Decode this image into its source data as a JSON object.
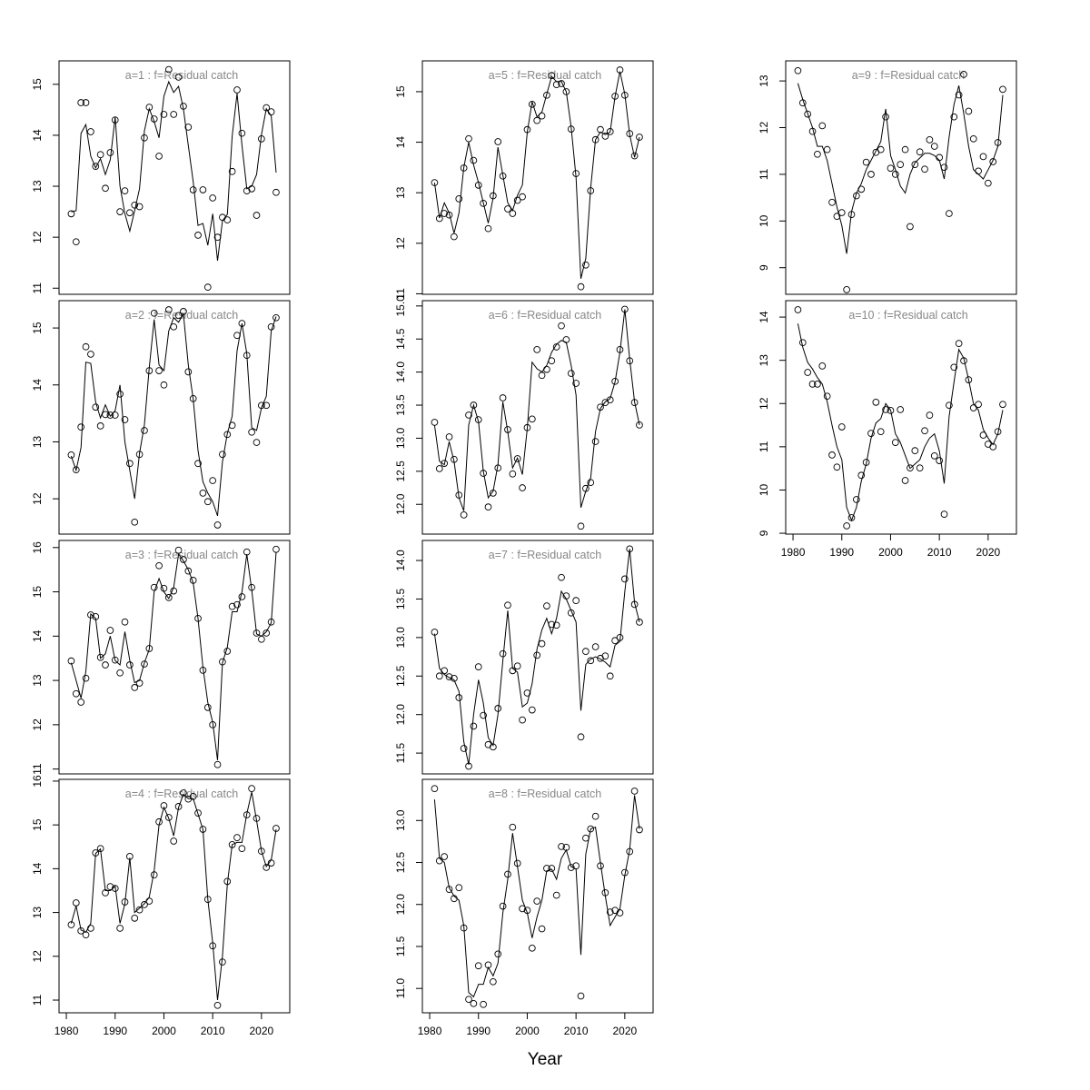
{
  "x_label": "Year",
  "x": [
    1981,
    1982,
    1983,
    1984,
    1985,
    1986,
    1987,
    1988,
    1989,
    1990,
    1991,
    1992,
    1993,
    1994,
    1995,
    1996,
    1997,
    1998,
    1999,
    2000,
    2001,
    2002,
    2003,
    2004,
    2005,
    2006,
    2007,
    2008,
    2009,
    2010,
    2011,
    2012,
    2013,
    2014,
    2015,
    2016,
    2017,
    2018,
    2019,
    2020,
    2021,
    2022,
    2023
  ],
  "xlim": [
    1978.5,
    2025.8
  ],
  "xticks": [
    1980,
    1990,
    2000,
    2010,
    2020
  ],
  "chart_data": [
    {
      "type": "line",
      "title": "a=1  :  f=Residual catch",
      "ylim": [
        10.88,
        15.46
      ],
      "yticks": [
        11,
        12,
        13,
        14,
        15
      ],
      "x_axis": false,
      "points": [
        12.46,
        11.91,
        14.64,
        14.64,
        14.07,
        13.39,
        13.62,
        12.96,
        13.66,
        14.3,
        12.5,
        12.91,
        12.48,
        12.63,
        12.6,
        13.95,
        14.55,
        14.32,
        13.59,
        14.41,
        15.29,
        14.41,
        15.14,
        14.57,
        14.16,
        12.93,
        12.04,
        12.93,
        11.02,
        12.77,
        12.0,
        12.39,
        12.34,
        13.29,
        14.89,
        14.04,
        12.91,
        12.95,
        12.43,
        13.93,
        14.54,
        14.46,
        12.88
      ],
      "line": [
        12.5,
        12.52,
        14.04,
        14.21,
        13.59,
        13.36,
        13.54,
        13.23,
        13.52,
        14.36,
        13.0,
        12.46,
        12.12,
        12.52,
        12.95,
        14.09,
        14.52,
        14.27,
        13.95,
        14.77,
        15.05,
        14.84,
        14.96,
        14.52,
        13.8,
        13.09,
        12.23,
        12.27,
        11.84,
        12.46,
        11.54,
        12.32,
        12.45,
        13.98,
        14.82,
        13.8,
        12.95,
        13.0,
        13.23,
        14.02,
        14.52,
        14.38,
        13.27
      ]
    },
    {
      "type": "line",
      "title": "a=2  :  f=Residual catch",
      "ylim": [
        11.38,
        15.48
      ],
      "yticks": [
        12,
        13,
        14,
        15
      ],
      "x_axis": false,
      "points": [
        12.77,
        12.51,
        13.26,
        14.67,
        14.54,
        13.61,
        13.28,
        13.48,
        13.47,
        13.47,
        13.84,
        13.39,
        12.62,
        11.59,
        12.78,
        13.2,
        14.25,
        15.26,
        14.25,
        14.0,
        15.32,
        15.02,
        15.22,
        15.29,
        14.23,
        13.76,
        12.62,
        12.1,
        11.95,
        12.32,
        11.54,
        12.78,
        13.13,
        13.29,
        14.87,
        15.08,
        14.52,
        13.17,
        12.99,
        13.64,
        13.64,
        15.02,
        15.18
      ],
      "line": [
        12.75,
        12.5,
        12.9,
        14.4,
        14.38,
        13.7,
        13.42,
        13.65,
        13.45,
        13.55,
        14.0,
        13.0,
        12.5,
        12.0,
        12.8,
        13.3,
        14.3,
        15.15,
        14.35,
        14.25,
        14.95,
        15.18,
        15.1,
        15.25,
        14.35,
        13.75,
        12.85,
        12.3,
        12.1,
        11.95,
        11.7,
        12.65,
        13.15,
        13.45,
        14.6,
        15.08,
        14.55,
        13.25,
        13.2,
        13.6,
        13.8,
        14.95,
        15.2
      ]
    },
    {
      "type": "line",
      "title": "a=3  :  f=Residual catch",
      "ylim": [
        10.89,
        16.16
      ],
      "yticks": [
        11,
        12,
        13,
        14,
        15,
        16
      ],
      "x_axis": false,
      "points": [
        13.44,
        12.7,
        12.51,
        13.05,
        14.48,
        14.44,
        13.52,
        13.35,
        14.13,
        13.46,
        13.17,
        14.32,
        13.35,
        12.84,
        12.94,
        13.37,
        13.72,
        15.1,
        15.59,
        15.08,
        14.87,
        15.02,
        15.94,
        15.73,
        15.47,
        15.26,
        14.4,
        13.23,
        12.39,
        12.0,
        11.1,
        13.42,
        13.66,
        14.67,
        14.71,
        14.89,
        15.9,
        15.1,
        14.07,
        13.93,
        14.07,
        14.32,
        15.96
      ],
      "line": [
        13.4,
        13.0,
        12.6,
        13.2,
        14.5,
        14.4,
        13.5,
        13.6,
        14.0,
        13.45,
        13.35,
        14.1,
        13.45,
        12.95,
        13.0,
        13.4,
        13.7,
        15.0,
        15.3,
        15.0,
        14.85,
        15.1,
        15.85,
        15.7,
        15.5,
        15.2,
        14.4,
        13.3,
        12.5,
        12.05,
        11.2,
        13.4,
        13.75,
        14.55,
        14.55,
        15.0,
        15.85,
        15.05,
        14.05,
        14.0,
        14.1,
        14.3,
        15.9
      ]
    },
    {
      "type": "line",
      "title": "a=4  :  f=Residual catch",
      "ylim": [
        10.71,
        16.04
      ],
      "yticks": [
        11,
        12,
        13,
        14,
        15,
        16
      ],
      "x_axis": true,
      "points": [
        12.72,
        13.22,
        12.58,
        12.49,
        12.64,
        14.36,
        14.46,
        13.45,
        13.59,
        13.55,
        12.64,
        13.24,
        14.28,
        12.87,
        13.06,
        13.18,
        13.26,
        13.86,
        15.07,
        15.44,
        15.17,
        14.63,
        15.42,
        15.73,
        15.59,
        15.65,
        15.27,
        14.9,
        13.3,
        12.24,
        10.88,
        11.87,
        13.71,
        14.55,
        14.71,
        14.46,
        15.23,
        15.83,
        15.15,
        14.4,
        14.03,
        14.13,
        14.92
      ],
      "line": [
        12.75,
        13.15,
        12.6,
        12.55,
        12.75,
        14.35,
        14.45,
        13.5,
        13.5,
        13.6,
        12.75,
        13.2,
        14.25,
        13.0,
        13.1,
        13.2,
        13.35,
        13.95,
        15.0,
        15.4,
        15.15,
        14.75,
        15.4,
        15.7,
        15.6,
        15.6,
        15.25,
        14.9,
        13.3,
        12.3,
        11.0,
        12.0,
        13.65,
        14.55,
        14.6,
        14.6,
        15.25,
        15.75,
        15.1,
        14.4,
        14.05,
        14.2,
        14.9
      ]
    },
    {
      "type": "line",
      "title": "a=5  :  f=Residual catch",
      "ylim": [
        10.99,
        15.61
      ],
      "yticks": [
        11,
        12,
        13,
        14,
        15
      ],
      "x_axis": false,
      "points": [
        13.2,
        12.49,
        12.59,
        12.56,
        12.13,
        12.88,
        13.49,
        14.07,
        13.64,
        13.15,
        12.79,
        12.29,
        12.94,
        14.01,
        13.33,
        12.68,
        12.59,
        12.85,
        12.92,
        14.25,
        14.75,
        14.43,
        14.52,
        14.93,
        15.32,
        15.14,
        15.16,
        15.0,
        14.26,
        13.38,
        11.14,
        11.57,
        13.04,
        14.05,
        14.25,
        14.12,
        14.21,
        14.91,
        15.43,
        14.93,
        14.17,
        13.73,
        14.1
      ],
      "line": [
        13.2,
        12.5,
        12.8,
        12.6,
        12.2,
        12.6,
        13.5,
        14.0,
        13.55,
        13.2,
        12.8,
        12.4,
        12.9,
        13.9,
        13.35,
        12.8,
        12.65,
        12.95,
        13.15,
        14.2,
        14.8,
        14.5,
        14.6,
        14.95,
        15.3,
        15.2,
        15.2,
        15.0,
        14.3,
        13.3,
        11.3,
        11.7,
        13.1,
        14.05,
        14.2,
        14.15,
        14.2,
        14.9,
        15.4,
        14.95,
        14.15,
        13.7,
        14.1
      ]
    },
    {
      "type": "line",
      "title": "a=6  :  f=Residual catch",
      "ylim": [
        11.55,
        15.08
      ],
      "yticks": [
        {
          "value": 12,
          "label": "12.0"
        },
        12.5,
        {
          "value": 13,
          "label": "13.0"
        },
        13.5,
        {
          "value": 14,
          "label": "14.0"
        },
        14.5,
        {
          "value": 15,
          "label": "15.0"
        }
      ],
      "x_axis": false,
      "points": [
        13.24,
        12.54,
        12.62,
        13.02,
        12.68,
        12.14,
        11.84,
        13.35,
        13.5,
        13.28,
        12.47,
        11.96,
        12.17,
        12.55,
        13.61,
        13.13,
        12.46,
        12.69,
        12.25,
        13.16,
        13.29,
        14.34,
        13.95,
        14.04,
        14.17,
        14.38,
        14.7,
        14.49,
        13.98,
        13.83,
        11.67,
        12.24,
        12.33,
        12.95,
        13.47,
        13.54,
        13.58,
        13.86,
        14.34,
        14.95,
        14.17,
        13.54,
        13.2
      ],
      "line": [
        13.2,
        12.65,
        12.6,
        12.95,
        12.65,
        12.1,
        11.9,
        13.2,
        13.5,
        13.25,
        12.5,
        12.1,
        12.2,
        12.6,
        13.55,
        13.1,
        12.55,
        12.7,
        12.45,
        13.15,
        14.15,
        14.05,
        14.0,
        14.1,
        14.3,
        14.42,
        14.48,
        14.45,
        14.1,
        13.65,
        11.95,
        12.2,
        12.4,
        13.1,
        13.45,
        13.55,
        13.6,
        13.85,
        14.3,
        14.95,
        14.2,
        13.55,
        13.2
      ]
    },
    {
      "type": "line",
      "title": "a=7  :  f=Residual catch",
      "ylim": [
        11.23,
        14.26
      ],
      "yticks": [
        11.5,
        {
          "value": 12,
          "label": "12.0"
        },
        12.5,
        {
          "value": 13,
          "label": "13.0"
        },
        13.5,
        {
          "value": 14,
          "label": "14.0"
        }
      ],
      "x_axis": false,
      "points": [
        13.07,
        12.5,
        12.57,
        12.49,
        12.47,
        12.22,
        11.56,
        11.33,
        11.85,
        12.62,
        11.99,
        11.61,
        11.58,
        12.08,
        12.79,
        13.42,
        12.57,
        12.63,
        11.93,
        12.28,
        12.06,
        12.77,
        12.92,
        13.41,
        13.17,
        13.16,
        13.78,
        13.54,
        13.32,
        13.48,
        11.71,
        12.82,
        12.7,
        12.88,
        12.73,
        12.76,
        12.5,
        12.96,
        13.0,
        13.76,
        14.15,
        13.43,
        13.2
      ],
      "line": [
        13.05,
        12.6,
        12.52,
        12.48,
        12.45,
        12.3,
        11.65,
        11.35,
        12.0,
        12.45,
        12.15,
        11.7,
        11.6,
        12.0,
        12.7,
        13.35,
        12.6,
        12.55,
        12.1,
        12.15,
        12.4,
        12.85,
        13.1,
        13.25,
        13.05,
        13.25,
        13.6,
        13.5,
        13.35,
        13.2,
        12.05,
        12.65,
        12.72,
        12.75,
        12.72,
        12.68,
        12.62,
        12.9,
        12.95,
        13.6,
        14.15,
        13.45,
        13.2
      ]
    },
    {
      "type": "line",
      "title": "a=8  :  f=Residual catch",
      "ylim": [
        10.71,
        13.49
      ],
      "yticks": [
        {
          "value": 11,
          "label": "11.0"
        },
        11.5,
        {
          "value": 12,
          "label": "12.0"
        },
        12.5,
        {
          "value": 13,
          "label": "13.0"
        }
      ],
      "x_axis": true,
      "points": [
        13.38,
        12.52,
        12.57,
        12.18,
        12.07,
        12.2,
        11.72,
        10.87,
        10.82,
        11.27,
        10.81,
        11.28,
        11.08,
        11.41,
        11.98,
        12.36,
        12.92,
        12.49,
        11.95,
        11.93,
        11.48,
        12.04,
        11.71,
        12.43,
        12.43,
        12.11,
        12.69,
        12.68,
        12.44,
        12.46,
        10.91,
        12.79,
        12.9,
        13.05,
        12.46,
        12.14,
        11.91,
        11.93,
        11.9,
        12.38,
        12.63,
        13.35,
        12.89
      ],
      "line": [
        13.25,
        12.55,
        12.5,
        12.2,
        12.1,
        12.05,
        11.75,
        10.95,
        10.9,
        11.05,
        11.05,
        11.25,
        11.15,
        11.3,
        11.9,
        12.3,
        12.85,
        12.45,
        12.05,
        11.9,
        11.6,
        11.85,
        12.05,
        12.4,
        12.42,
        12.3,
        12.55,
        12.65,
        12.45,
        12.42,
        11.4,
        12.6,
        12.9,
        12.92,
        12.5,
        12.1,
        11.75,
        11.85,
        11.95,
        12.35,
        12.65,
        13.3,
        12.9
      ]
    },
    {
      "type": "line",
      "title": "a=9  :  f=Residual catch",
      "ylim": [
        8.43,
        13.43
      ],
      "yticks": [
        9,
        10,
        11,
        12,
        13
      ],
      "x_axis": false,
      "points": [
        13.22,
        12.53,
        12.29,
        11.92,
        11.43,
        12.04,
        11.53,
        10.4,
        10.1,
        10.18,
        8.53,
        10.14,
        10.54,
        10.68,
        11.26,
        11.0,
        11.47,
        11.53,
        12.23,
        11.13,
        11.0,
        11.21,
        11.53,
        9.88,
        11.21,
        11.48,
        11.11,
        11.74,
        11.6,
        11.36,
        11.15,
        10.16,
        12.23,
        12.7,
        13.14,
        12.35,
        11.76,
        11.07,
        11.38,
        10.81,
        11.27,
        11.68,
        12.82
      ],
      "line": [
        12.95,
        12.6,
        12.3,
        12.0,
        11.6,
        11.6,
        11.3,
        10.8,
        10.3,
        9.9,
        9.3,
        10.2,
        10.6,
        10.8,
        11.1,
        11.3,
        11.5,
        11.7,
        12.4,
        11.4,
        11.1,
        10.75,
        10.6,
        11.0,
        11.25,
        11.35,
        11.45,
        11.45,
        11.4,
        11.3,
        10.9,
        11.8,
        12.5,
        12.9,
        12.3,
        11.6,
        11.1,
        11.0,
        10.9,
        11.1,
        11.3,
        11.6,
        12.7
      ]
    },
    {
      "type": "line",
      "title": "a=10  :  f=Residual catch",
      "ylim": [
        8.98,
        14.38
      ],
      "yticks": [
        9,
        10,
        11,
        12,
        13,
        14
      ],
      "x_axis": true,
      "points": [
        14.17,
        13.41,
        12.72,
        12.45,
        12.45,
        12.87,
        12.17,
        10.81,
        10.53,
        11.46,
        9.17,
        9.36,
        9.78,
        10.34,
        10.64,
        11.31,
        12.03,
        11.35,
        11.86,
        11.84,
        11.1,
        11.86,
        10.22,
        10.51,
        10.91,
        10.51,
        11.37,
        11.73,
        10.79,
        10.68,
        9.44,
        11.96,
        12.84,
        13.39,
        12.99,
        12.55,
        11.9,
        11.98,
        11.27,
        11.06,
        11.0,
        11.35,
        11.98
      ],
      "line": [
        13.85,
        13.3,
        12.95,
        12.8,
        12.6,
        12.45,
        12.05,
        11.5,
        11.0,
        10.7,
        9.6,
        9.3,
        9.6,
        10.2,
        10.6,
        11.2,
        11.55,
        11.65,
        12.0,
        11.85,
        11.3,
        11.1,
        10.8,
        10.5,
        10.6,
        10.7,
        11.0,
        11.2,
        11.3,
        10.9,
        10.15,
        11.7,
        12.5,
        13.25,
        13.05,
        12.55,
        12.0,
        11.85,
        11.4,
        11.2,
        11.05,
        11.3,
        11.85
      ]
    }
  ]
}
